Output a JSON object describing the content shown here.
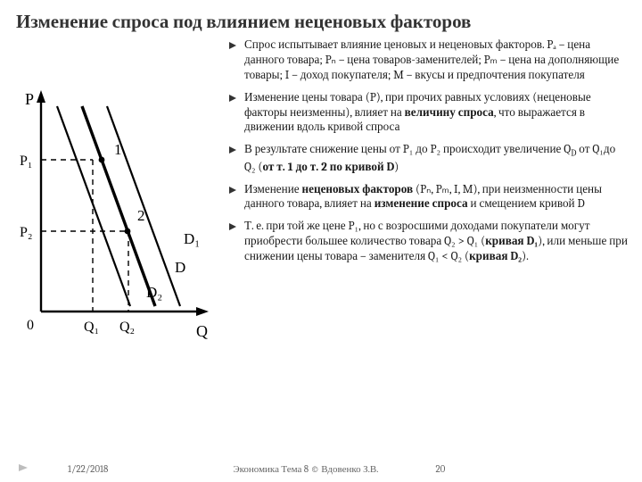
{
  "title": "Изменение спроса под влиянием неценовых факторов",
  "bullets": [
    "Спрос испытывает влияние ценовых и неценовых факторов. Pₐ – цена данного товара; Pₙ – цена товаров-заменителей; Pₘ – цена на дополняющие товары; I – доход покупателя; M – вкусы и предпочтения покупателя",
    "Изменение цены товара (P), при прочих равных условиях (неценовые факторы неизменны), влияет на <b>величину спроса</b>, что выражается в движении вдоль кривой спроса",
    "В результате снижение цены от P₁ до P₂ происходит увеличение Q<span class='sub'>D</span> от Q₁до Q₂ (<b>от т. 1 до т. 2 по кривой D</b>)",
    "Изменение <b>неценовых факторов</b> (Pₙ, Pₘ, I, M), при неизменности цены данного товара, влияет на <b>изменение спроса</b> и смещением кривой D",
    "Т. е. при той же цене P₁, но с возросшими доходами покупатели могут приобрести большее количество товара Q₂ > Q₁ (<b>кривая D₁</b>), или меньше при снижении цены товара – заменителя Q₁ < Q₂ (<b>кривая D₂</b>)."
  ],
  "footer": {
    "date": "1/22/2018",
    "center": "Экономика Тема 8 © Вдовенко З.В.",
    "page": "20"
  },
  "chart": {
    "axes": {
      "x_label": "Q",
      "y_label": "P",
      "origin_label": "0"
    },
    "y_ticks": [
      "P₁",
      "P₂"
    ],
    "x_ticks": [
      "Q₁",
      "Q₂"
    ],
    "point_labels": [
      "1",
      "2"
    ],
    "curve_labels": [
      "D₁",
      "D",
      "D₂"
    ],
    "colors": {
      "axis": "#000000",
      "curve_main": "#000000",
      "curve_side": "#000000",
      "dashed": "#000000",
      "background": "#ffffff"
    },
    "line_weights": {
      "main": 3.2,
      "side": 2.2,
      "axis": 2.4,
      "dashed": 1.4
    }
  }
}
